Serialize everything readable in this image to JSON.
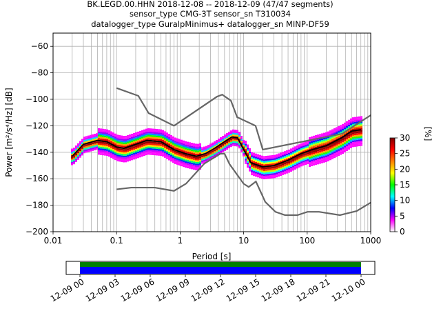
{
  "chart_data": {
    "type": "heatmap",
    "title_lines": [
      "BK.LEGD.00.HHN   2018-12-08 -- 2018-12-09  (47/47 segments)",
      "sensor_type CMG-3T sensor_sn T310034",
      "datalogger_type GuralpMinimus+ datalogger_sn MINP-DF59"
    ],
    "xlabel": "Period [s]",
    "ylabel": "Power [m²/s⁴/Hz] [dB]",
    "x_scale": "log",
    "xlim": [
      0.01,
      1000
    ],
    "ylim": [
      -200,
      -50
    ],
    "x_ticks": [
      0.01,
      0.1,
      1,
      10,
      100,
      1000
    ],
    "x_tick_labels": [
      "0.01",
      "0.1",
      "1",
      "10",
      "100",
      "1000"
    ],
    "y_ticks": [
      -60,
      -80,
      -100,
      -120,
      -140,
      -160,
      -180,
      -200
    ],
    "grid": true,
    "colorbar": {
      "label": "[%]",
      "range": [
        0,
        30
      ],
      "ticks": [
        0,
        5,
        10,
        15,
        20,
        25,
        30
      ],
      "colormap": [
        "#ffffff",
        "#ff00ff",
        "#0000ff",
        "#00ffff",
        "#00ff00",
        "#ffff00",
        "#ff8000",
        "#ff0000",
        "#800000"
      ]
    },
    "noise_models": [
      {
        "name": "NHNM",
        "color": "#666666",
        "x": [
          0.1,
          0.22,
          0.32,
          0.8,
          3.8,
          4.6,
          6.3,
          7.9,
          15.4,
          20,
          354,
          1000
        ],
        "y": [
          -91.5,
          -97.4,
          -110.5,
          -120,
          -98,
          -96.5,
          -101,
          -113.5,
          -120,
          -138,
          -126,
          -112
        ]
      },
      {
        "name": "NLNM",
        "color": "#666666",
        "x": [
          0.1,
          0.17,
          0.4,
          0.8,
          1.24,
          2.4,
          4.3,
          5,
          6,
          10,
          12,
          15.6,
          21.9,
          31.6,
          45,
          70,
          101,
          154,
          328,
          600,
          1000
        ],
        "y": [
          -168,
          -166.7,
          -166.7,
          -169.2,
          -163.7,
          -148.6,
          -141.1,
          -141.1,
          -149,
          -163.8,
          -166.2,
          -162.1,
          -177.5,
          -185,
          -187.5,
          -187.5,
          -185,
          -185,
          -187.5,
          -184.4,
          -178
        ]
      }
    ],
    "mean_curve": {
      "color": "#000000",
      "x": [
        0.02,
        0.03,
        0.05,
        0.07,
        0.1,
        0.13,
        0.2,
        0.3,
        0.5,
        0.8,
        1.2,
        1.8,
        2.5,
        3.5,
        5,
        6.5,
        8,
        10,
        13,
        20,
        30,
        50,
        80,
        120,
        200,
        350,
        500,
        700
      ],
      "y": [
        -143,
        -134,
        -131,
        -132,
        -136,
        -137,
        -134,
        -131,
        -132,
        -138,
        -141,
        -143,
        -141,
        -137,
        -132,
        -128.5,
        -129,
        -138,
        -148,
        -151,
        -150,
        -146,
        -141,
        -138,
        -135,
        -129,
        -124,
        -123
      ]
    },
    "time_axis": {
      "labels": [
        "12-09 00",
        "12-09 03",
        "12-09 06",
        "12-09 09",
        "12-09 12",
        "12-09 15",
        "12-09 18",
        "12-09 21",
        "12-10 00"
      ],
      "bands": [
        {
          "name": "data",
          "color": "#008000"
        },
        {
          "name": "used",
          "color": "#0000ff"
        }
      ]
    }
  }
}
